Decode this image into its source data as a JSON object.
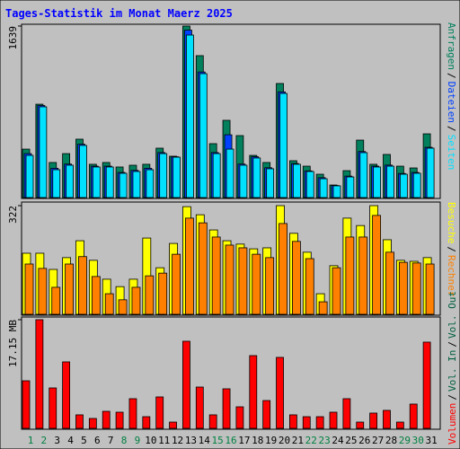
{
  "chart_data": [
    {
      "type": "bar",
      "title": "Tages-Statistik im Monat Maerz 2025",
      "categories": [
        "1",
        "2",
        "3",
        "4",
        "5",
        "6",
        "7",
        "8",
        "9",
        "10",
        "11",
        "12",
        "13",
        "14",
        "15",
        "16",
        "17",
        "18",
        "19",
        "20",
        "21",
        "22",
        "23",
        "24",
        "25",
        "26",
        "27",
        "28",
        "29",
        "30",
        "31"
      ],
      "weekend_color": "#008040",
      "weekends": [
        0,
        1,
        7,
        8,
        14,
        15,
        21,
        22,
        28,
        29
      ],
      "separator": "/",
      "ylim": [
        0,
        1639
      ],
      "yticks": [
        1639
      ],
      "series": [
        {
          "name": "Anfragen",
          "color": "#00805c",
          "values": [
            463,
            892,
            335,
            420,
            558,
            318,
            335,
            292,
            309,
            318,
            472,
            395,
            1639,
            1356,
            515,
            738,
            592,
            403,
            335,
            1090,
            352,
            300,
            223,
            120,
            257,
            549,
            318,
            412,
            300,
            283,
            609
          ]
        },
        {
          "name": "Dateien",
          "color": "#0040ff",
          "values": [
            420,
            880,
            280,
            320,
            510,
            300,
            300,
            240,
            260,
            280,
            430,
            390,
            1600,
            1200,
            430,
            600,
            320,
            390,
            285,
            1010,
            325,
            255,
            190,
            115,
            205,
            440,
            300,
            310,
            230,
            240,
            480
          ]
        },
        {
          "name": "Seiten",
          "color": "#00e0ff",
          "values": [
            403,
            867,
            266,
            309,
            498,
            292,
            292,
            232,
            249,
            266,
            420,
            386,
            1553,
            1184,
            420,
            463,
            309,
            378,
            275,
            995,
            318,
            249,
            180,
            112,
            197,
            429,
            292,
            300,
            223,
            232,
            472
          ]
        }
      ]
    },
    {
      "type": "bar",
      "categories": [
        "1",
        "2",
        "3",
        "4",
        "5",
        "6",
        "7",
        "8",
        "9",
        "10",
        "11",
        "12",
        "13",
        "14",
        "15",
        "16",
        "17",
        "18",
        "19",
        "20",
        "21",
        "22",
        "23",
        "24",
        "25",
        "26",
        "27",
        "28",
        "29",
        "30",
        "31"
      ],
      "separator": "/",
      "ylim": [
        0,
        322
      ],
      "yticks": [
        322
      ],
      "series": [
        {
          "name": "Besuche",
          "color": "#ffff00",
          "values": [
            181,
            181,
            133,
            168,
            218,
            160,
            104,
            82,
            104,
            226,
            138,
            210,
            319,
            295,
            250,
            218,
            208,
            194,
            197,
            322,
            240,
            184,
            61,
            144,
            285,
            263,
            322,
            221,
            160,
            157,
            168
          ]
        },
        {
          "name": "Rechner",
          "color": "#ff8000",
          "values": [
            149,
            136,
            80,
            149,
            171,
            112,
            61,
            43,
            80,
            114,
            122,
            178,
            285,
            271,
            229,
            205,
            197,
            178,
            168,
            269,
            216,
            165,
            37,
            138,
            229,
            229,
            293,
            184,
            154,
            152,
            149
          ]
        }
      ]
    },
    {
      "type": "bar",
      "categories": [
        "1",
        "2",
        "3",
        "4",
        "5",
        "6",
        "7",
        "8",
        "9",
        "10",
        "11",
        "12",
        "13",
        "14",
        "15",
        "16",
        "17",
        "18",
        "19",
        "20",
        "21",
        "22",
        "23",
        "24",
        "25",
        "26",
        "27",
        "28",
        "29",
        "30",
        "31"
      ],
      "separator": "/",
      "ylim": [
        0,
        17.15
      ],
      "yticks": [
        {
          "value": 17.15,
          "label": "17.15 MB"
        }
      ],
      "series": [
        {
          "name": "Volumen",
          "color": "#ff0000",
          "values": [
            7.51,
            17.15,
            6.38,
            10.49,
            2.13,
            1.56,
            2.69,
            2.55,
            4.68,
            1.84,
            4.96,
            0.99,
            13.75,
            6.52,
            2.13,
            6.24,
            3.4,
            11.48,
            4.39,
            11.2,
            2.13,
            1.84,
            1.84,
            2.55,
            4.68,
            0.99,
            2.41,
            2.84,
            0.99,
            3.83,
            13.61
          ]
        }
      ],
      "legend_extra": [
        {
          "name": "Vol. In",
          "color": "#006040"
        },
        {
          "name": "Vol. Out",
          "color": "#006040"
        }
      ]
    }
  ]
}
